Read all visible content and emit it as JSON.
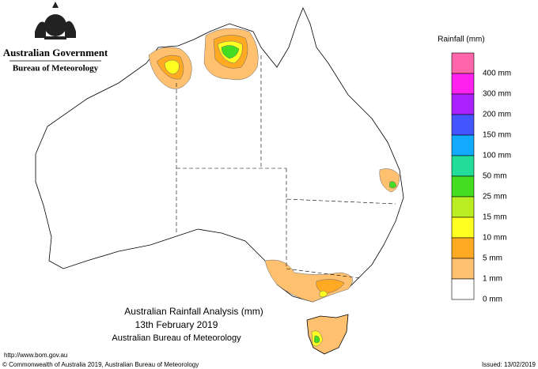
{
  "header": {
    "title": "Australian Government",
    "subtitle": "Bureau of Meteorology"
  },
  "legend": {
    "title": "Rainfall (mm)",
    "items": [
      {
        "label": "400 mm",
        "color": "#ff66aa"
      },
      {
        "label": "300 mm",
        "color": "#ff22ee"
      },
      {
        "label": "200 mm",
        "color": "#aa22ff"
      },
      {
        "label": "150 mm",
        "color": "#4455ff"
      },
      {
        "label": "100 mm",
        "color": "#11aaff"
      },
      {
        "label": "50 mm",
        "color": "#22dd99"
      },
      {
        "label": "25 mm",
        "color": "#44dd22"
      },
      {
        "label": "15 mm",
        "color": "#bbee22"
      },
      {
        "label": "10 mm",
        "color": "#ffff22"
      },
      {
        "label": "5 mm",
        "color": "#ffaa22"
      },
      {
        "label": "1 mm",
        "color": "#ffc070"
      },
      {
        "label": "0 mm",
        "color": "#ffffff"
      }
    ]
  },
  "map": {
    "title": "Australian Rainfall Analysis (mm)",
    "date": "13th February 2019",
    "source": "Australian Bureau of Meteorology"
  },
  "footer": {
    "url": "http://www.bom.gov.au",
    "copyright": "© Commonwealth of Australia 2019, Australian Bureau of Meteorology",
    "issued": "Issued: 13/02/2019"
  }
}
